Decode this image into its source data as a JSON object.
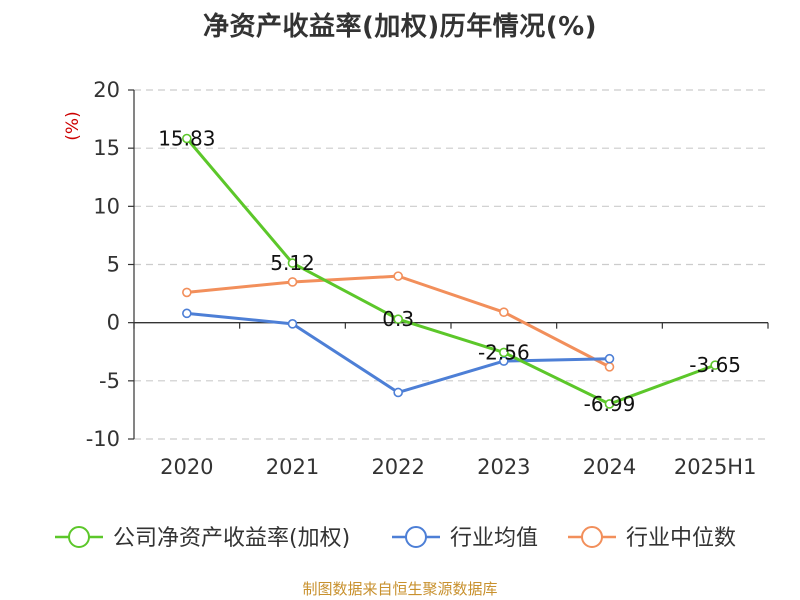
{
  "chart_data": {
    "type": "line",
    "title": "净资产收益率(加权)历年情况(%)",
    "ylabel": "(%)",
    "xlabel": "",
    "categories": [
      "2020",
      "2021",
      "2022",
      "2023",
      "2024",
      "2025H1"
    ],
    "y_ticks": [
      20,
      15,
      10,
      5,
      0,
      -5,
      -10
    ],
    "ylim": [
      -10,
      20
    ],
    "grid": true,
    "legend_position": "bottom",
    "series": [
      {
        "name": "公司净资产收益率(加权)",
        "color": "#5cc72a",
        "values": [
          15.83,
          5.12,
          0.3,
          -2.56,
          -6.99,
          -3.65
        ],
        "labels": [
          "15.83",
          "5.12",
          "0.3",
          "-2.56",
          "-6.99",
          "-3.65"
        ]
      },
      {
        "name": "行业均值",
        "color": "#4d7fd6",
        "values": [
          0.8,
          -0.1,
          -6.0,
          -3.3,
          -3.1,
          null
        ]
      },
      {
        "name": "行业中位数",
        "color": "#f28f5b",
        "values": [
          2.6,
          3.5,
          4.0,
          0.9,
          -3.8,
          null
        ]
      }
    ]
  },
  "source": "制图数据来自恒生聚源数据库"
}
